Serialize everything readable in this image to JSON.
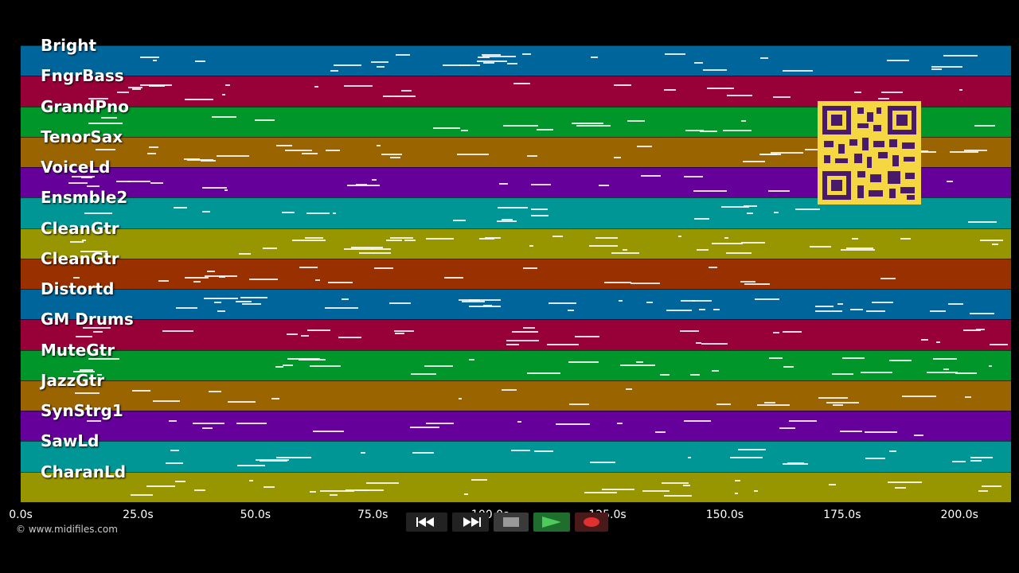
{
  "lanes": [
    {
      "label": "Bright",
      "color": "#00659a"
    },
    {
      "label": "FngrBass",
      "color": "#980038"
    },
    {
      "label": "GrandPno",
      "color": "#00962a"
    },
    {
      "label": "TenorSax",
      "color": "#9a6400"
    },
    {
      "label": "VoiceLd",
      "color": "#66009a"
    },
    {
      "label": "Ensmble2",
      "color": "#009696"
    },
    {
      "label": "CleanGtr",
      "color": "#989600"
    },
    {
      "label": "CleanGtr",
      "color": "#983000"
    },
    {
      "label": "Distortd",
      "color": "#00659a"
    },
    {
      "label": "GM Drums",
      "color": "#980038"
    },
    {
      "label": "MuteGtr",
      "color": "#00962a"
    },
    {
      "label": "JazzGtr",
      "color": "#9a6400"
    },
    {
      "label": "SynStrg1",
      "color": "#66009a"
    },
    {
      "label": "SawLd",
      "color": "#009696"
    },
    {
      "label": "CharanLd",
      "color": "#989600"
    }
  ],
  "time_axis": {
    "ticks": [
      "0.0s",
      "25.0s",
      "50.0s",
      "75.0s",
      "100.0s",
      "125.0s",
      "150.0s",
      "175.0s",
      "200.0s"
    ]
  },
  "copyright": "© www.midifiles.com",
  "transport": [
    {
      "name": "rewind-button",
      "icon": "rewind-icon"
    },
    {
      "name": "fast-forward-button",
      "icon": "fast-forward-icon"
    },
    {
      "name": "stop-button",
      "icon": "stop-icon"
    },
    {
      "name": "play-button",
      "icon": "play-icon"
    },
    {
      "name": "record-button",
      "icon": "record-icon"
    }
  ],
  "qr_code": "qr-code-icon"
}
